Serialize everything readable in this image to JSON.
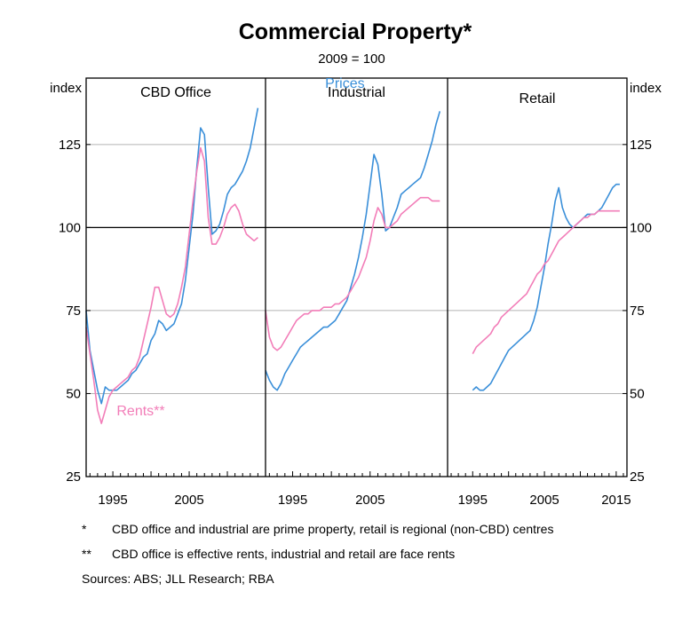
{
  "title": "Commercial Property*",
  "subtitle": "2009 = 100",
  "y_unit_left": "index",
  "y_unit_right": "index",
  "colors": {
    "prices": "#3a8fd9",
    "rents": "#f27db8"
  },
  "chart_data": {
    "type": "line",
    "ylim": [
      25,
      145
    ],
    "yticks": [
      "25",
      "50",
      "75",
      "100",
      "125"
    ],
    "grid": true,
    "panels": [
      {
        "title": "CBD Office",
        "xlim": [
          1991.5,
          2015
        ],
        "xticks": [
          "1995",
          "2005"
        ],
        "series": [
          {
            "name": "Prices",
            "color": "#3a8fd9",
            "label_shown": false,
            "x": [
              1991.5,
              1992,
              1992.5,
              1993,
              1993.5,
              1994,
              1994.5,
              1995,
              1995.5,
              1996,
              1996.5,
              1997,
              1997.5,
              1998,
              1998.5,
              1999,
              1999.5,
              2000,
              2000.5,
              2001,
              2001.5,
              2002,
              2002.5,
              2003,
              2003.5,
              2004,
              2004.5,
              2005,
              2005.5,
              2006,
              2006.5,
              2007,
              2007.5,
              2008,
              2008.5,
              2009,
              2009.5,
              2010,
              2010.5,
              2011,
              2011.5,
              2012,
              2012.5,
              2013,
              2013.5,
              2014
            ],
            "y": [
              75,
              63,
              57,
              51,
              47,
              52,
              51,
              51,
              51,
              52,
              53,
              54,
              56,
              57,
              59,
              61,
              62,
              66,
              68,
              72,
              71,
              69,
              70,
              71,
              74,
              77,
              84,
              94,
              104,
              118,
              130,
              128,
              112,
              98,
              99,
              101,
              105,
              110,
              112,
              113,
              115,
              117,
              120,
              124,
              130,
              136
            ]
          },
          {
            "name": "Rents**",
            "color": "#f27db8",
            "label_shown": true,
            "x": [
              1991.5,
              1992,
              1992.5,
              1993,
              1993.5,
              1994,
              1994.5,
              1995,
              1995.5,
              1996,
              1996.5,
              1997,
              1997.5,
              1998,
              1998.5,
              1999,
              1999.5,
              2000,
              2000.5,
              2001,
              2001.5,
              2002,
              2002.5,
              2003,
              2003.5,
              2004,
              2004.5,
              2005,
              2005.5,
              2006,
              2006.5,
              2007,
              2007.5,
              2008,
              2008.5,
              2009,
              2009.5,
              2010,
              2010.5,
              2011,
              2011.5,
              2012,
              2012.5,
              2013,
              2013.5,
              2014
            ],
            "y": [
              70,
              62,
              54,
              45,
              41,
              45,
              49,
              51,
              52,
              53,
              54,
              55,
              57,
              58,
              61,
              66,
              71,
              76,
              82,
              82,
              78,
              74,
              73,
              74,
              77,
              82,
              88,
              98,
              108,
              117,
              124,
              120,
              103,
              95,
              95,
              97,
              100,
              104,
              106,
              107,
              105,
              101,
              98,
              97,
              96,
              97
            ]
          }
        ]
      },
      {
        "title": "Industrial",
        "xlim": [
          1991.5,
          2015
        ],
        "xticks": [
          "1995",
          "2005"
        ],
        "series": [
          {
            "name": "Prices",
            "color": "#3a8fd9",
            "label_shown": true,
            "x": [
              1991.5,
              1992,
              1992.5,
              1993,
              1993.5,
              1994,
              1994.5,
              1995,
              1995.5,
              1996,
              1996.5,
              1997,
              1997.5,
              1998,
              1998.5,
              1999,
              1999.5,
              2000,
              2000.5,
              2001,
              2001.5,
              2002,
              2002.5,
              2003,
              2003.5,
              2004,
              2004.5,
              2005,
              2005.5,
              2006,
              2006.5,
              2007,
              2007.5,
              2008,
              2008.5,
              2009,
              2009.5,
              2010,
              2010.5,
              2011,
              2011.5,
              2012,
              2012.5,
              2013,
              2013.5,
              2014
            ],
            "y": [
              57,
              54,
              52,
              51,
              53,
              56,
              58,
              60,
              62,
              64,
              65,
              66,
              67,
              68,
              69,
              70,
              70,
              71,
              72,
              74,
              76,
              78,
              82,
              86,
              91,
              97,
              104,
              113,
              122,
              119,
              110,
              99,
              100,
              103,
              106,
              110,
              111,
              112,
              113,
              114,
              115,
              118,
              122,
              126,
              131,
              135
            ]
          },
          {
            "name": "Rents",
            "color": "#f27db8",
            "label_shown": false,
            "x": [
              1991.5,
              1992,
              1992.5,
              1993,
              1993.5,
              1994,
              1994.5,
              1995,
              1995.5,
              1996,
              1996.5,
              1997,
              1997.5,
              1998,
              1998.5,
              1999,
              1999.5,
              2000,
              2000.5,
              2001,
              2001.5,
              2002,
              2002.5,
              2003,
              2003.5,
              2004,
              2004.5,
              2005,
              2005.5,
              2006,
              2006.5,
              2007,
              2007.5,
              2008,
              2008.5,
              2009,
              2009.5,
              2010,
              2010.5,
              2011,
              2011.5,
              2012,
              2012.5,
              2013,
              2013.5,
              2014
            ],
            "y": [
              75,
              67,
              64,
              63,
              64,
              66,
              68,
              70,
              72,
              73,
              74,
              74,
              75,
              75,
              75,
              76,
              76,
              76,
              77,
              77,
              78,
              79,
              81,
              83,
              85,
              88,
              91,
              96,
              102,
              106,
              104,
              100,
              100,
              101,
              102,
              104,
              105,
              106,
              107,
              108,
              109,
              109,
              109,
              108,
              108,
              108
            ]
          }
        ]
      },
      {
        "title": "Retail",
        "xlim": [
          1991.5,
          2016.5
        ],
        "xticks": [
          "1995",
          "2005",
          "2015"
        ],
        "series": [
          {
            "name": "Prices",
            "color": "#3a8fd9",
            "label_shown": false,
            "x": [
              1995,
              1995.5,
              1996,
              1996.5,
              1997,
              1997.5,
              1998,
              1998.5,
              1999,
              1999.5,
              2000,
              2000.5,
              2001,
              2001.5,
              2002,
              2002.5,
              2003,
              2003.5,
              2004,
              2004.5,
              2005,
              2005.5,
              2006,
              2006.5,
              2007,
              2007.5,
              2008,
              2008.5,
              2009,
              2009.5,
              2010,
              2010.5,
              2011,
              2011.5,
              2012,
              2012.5,
              2013,
              2013.5,
              2014,
              2014.5,
              2015,
              2015.5
            ],
            "y": [
              51,
              52,
              51,
              51,
              52,
              53,
              55,
              57,
              59,
              61,
              63,
              64,
              65,
              66,
              67,
              68,
              69,
              72,
              76,
              82,
              88,
              95,
              101,
              108,
              112,
              106,
              103,
              101,
              100,
              101,
              102,
              103,
              104,
              104,
              104,
              105,
              106,
              108,
              110,
              112,
              113,
              113
            ]
          },
          {
            "name": "Rents",
            "color": "#f27db8",
            "label_shown": false,
            "x": [
              1995,
              1995.5,
              1996,
              1996.5,
              1997,
              1997.5,
              1998,
              1998.5,
              1999,
              1999.5,
              2000,
              2000.5,
              2001,
              2001.5,
              2002,
              2002.5,
              2003,
              2003.5,
              2004,
              2004.5,
              2005,
              2005.5,
              2006,
              2006.5,
              2007,
              2007.5,
              2008,
              2008.5,
              2009,
              2009.5,
              2010,
              2010.5,
              2011,
              2011.5,
              2012,
              2012.5,
              2013,
              2013.5,
              2014,
              2014.5,
              2015,
              2015.5
            ],
            "y": [
              62,
              64,
              65,
              66,
              67,
              68,
              70,
              71,
              73,
              74,
              75,
              76,
              77,
              78,
              79,
              80,
              82,
              84,
              86,
              87,
              89,
              90,
              92,
              94,
              96,
              97,
              98,
              99,
              100,
              101,
              102,
              103,
              103,
              104,
              104,
              105,
              105,
              105,
              105,
              105,
              105,
              105
            ]
          }
        ]
      }
    ],
    "annotations": [
      {
        "text": "Prices",
        "panel": 1,
        "series": "Prices"
      },
      {
        "text": "Rents**",
        "panel": 0,
        "series": "Rents**"
      }
    ]
  },
  "notes": [
    {
      "mark": "*",
      "text": "CBD office and industrial are prime property, retail is regional (non-CBD) centres"
    },
    {
      "mark": "**",
      "text": "CBD office is effective rents, industrial and retail are face rents"
    }
  ],
  "sources": "Sources: ABS; JLL Research; RBA"
}
